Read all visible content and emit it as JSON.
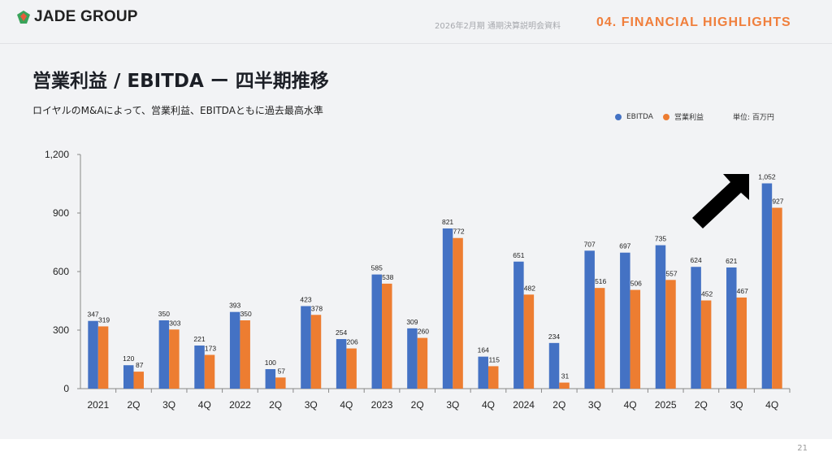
{
  "header": {
    "logo_text": "JADE GROUP",
    "doc_name": "2026年2月期 通期決算説明会資料",
    "section": "04. FINANCIAL HIGHLIGHTS"
  },
  "title": "営業利益 / EBITDA ー 四半期推移",
  "subtitle": "ロイヤルのM&Aによって、営業利益、EBITDAともに過去最高水準",
  "legend": {
    "ebitda": "EBITDA",
    "op": "営業利益",
    "unit": "単位: 百万円"
  },
  "page_number": "21",
  "colors": {
    "ebitda": "#4472c4",
    "op": "#ed7d31",
    "accent": "#f07f3c"
  },
  "chart_data": {
    "type": "bar",
    "title": "営業利益 / EBITDA ー 四半期推移",
    "xlabel": "",
    "ylabel": "",
    "ylim": [
      0,
      1200
    ],
    "yticks": [
      0,
      300,
      600,
      900,
      1200
    ],
    "ytick_labels": [
      "0",
      "300",
      "600",
      "900",
      "1,200"
    ],
    "legend_position": "top-right",
    "categories": [
      "2021",
      "2Q",
      "3Q",
      "4Q",
      "2022",
      "2Q",
      "3Q",
      "4Q",
      "2023",
      "2Q",
      "3Q",
      "4Q",
      "2024",
      "2Q",
      "3Q",
      "4Q",
      "2025",
      "2Q",
      "3Q",
      "4Q"
    ],
    "series": [
      {
        "name": "EBITDA",
        "values": [
          347,
          120,
          350,
          221,
          393,
          100,
          423,
          254,
          585,
          309,
          821,
          164,
          651,
          234,
          707,
          697,
          735,
          624,
          621,
          1052
        ],
        "labels": [
          "347",
          "120",
          "350",
          "221",
          "393",
          "100",
          "423",
          "254",
          "585",
          "309",
          "821",
          "164",
          "651",
          "234",
          "707",
          "697",
          "735",
          "624",
          "621",
          "1,052"
        ]
      },
      {
        "name": "営業利益",
        "values": [
          319,
          87,
          303,
          173,
          350,
          57,
          378,
          206,
          538,
          260,
          772,
          115,
          482,
          31,
          516,
          506,
          557,
          452,
          467,
          927
        ],
        "labels": [
          "319",
          "87",
          "303",
          "173",
          "350",
          "57",
          "378",
          "206",
          "538",
          "260",
          "772",
          "115",
          "482",
          "31",
          "516",
          "506",
          "557",
          "452",
          "467",
          "927"
        ]
      }
    ],
    "annotation": "up-arrow"
  }
}
